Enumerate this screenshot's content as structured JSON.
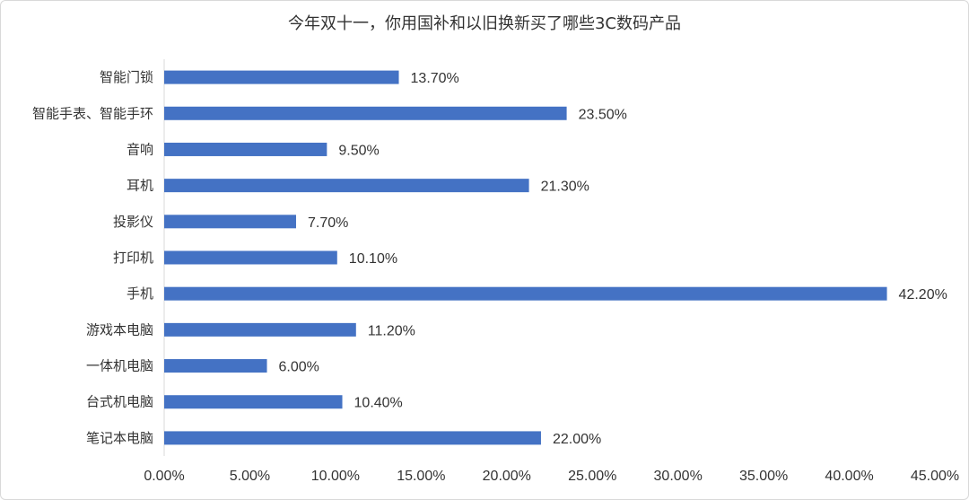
{
  "chart_data": {
    "type": "bar",
    "orientation": "horizontal",
    "title": "今年双十一，你用国补和以旧换新买了哪些3C数码产品",
    "categories": [
      "智能门锁",
      "智能手表、智能手环",
      "音响",
      "耳机",
      "投影仪",
      "打印机",
      "手机",
      "游戏本电脑",
      "一体机电脑",
      "台式机电脑",
      "笔记本电脑"
    ],
    "values": [
      13.7,
      23.5,
      9.5,
      21.3,
      7.7,
      10.1,
      42.2,
      11.2,
      6.0,
      10.4,
      22.0
    ],
    "value_labels": [
      "13.70%",
      "23.50%",
      "9.50%",
      "21.30%",
      "7.70%",
      "10.10%",
      "42.20%",
      "11.20%",
      "6.00%",
      "10.40%",
      "22.00%"
    ],
    "xlim": [
      0,
      45
    ],
    "ticks": [
      "0.00%",
      "5.00%",
      "10.00%",
      "15.00%",
      "20.00%",
      "25.00%",
      "30.00%",
      "35.00%",
      "40.00%",
      "45.00%"
    ],
    "xlabel": "",
    "ylabel": "",
    "grid": false,
    "legend": "none",
    "bar_color": "#4472C4"
  }
}
